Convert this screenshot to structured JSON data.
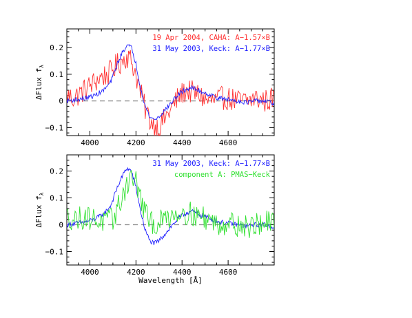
{
  "chart_data": [
    {
      "type": "line",
      "ylabel": "ΔFlux f",
      "ylabel_sub": "λ",
      "xlim": [
        3900,
        4800
      ],
      "ylim": [
        -0.13,
        0.27
      ],
      "x_ticks": [
        4000,
        4200,
        4400,
        4600
      ],
      "y_ticks": [
        -0.1,
        0,
        0.1,
        0.2
      ],
      "y_tick_labels": [
        "−0.1",
        "0",
        "0.1",
        "0.2"
      ],
      "zero_line": true,
      "legend_position": "top-right",
      "series": [
        {
          "name": "19 Apr 2004, CAHA: A−1.57×B",
          "color": "#ff3030",
          "style": "noisy",
          "x": [
            3900,
            3930,
            3960,
            3990,
            4020,
            4050,
            4080,
            4110,
            4140,
            4160,
            4180,
            4200,
            4220,
            4240,
            4260,
            4280,
            4300,
            4330,
            4360,
            4390,
            4420,
            4450,
            4480,
            4510,
            4540,
            4570,
            4600,
            4640,
            4680,
            4720,
            4760,
            4800
          ],
          "y": [
            0.02,
            0.01,
            0.03,
            0.05,
            0.07,
            0.09,
            0.1,
            0.13,
            0.15,
            0.17,
            0.15,
            0.1,
            0.03,
            -0.03,
            -0.07,
            -0.09,
            -0.1,
            -0.06,
            -0.02,
            0.02,
            0.04,
            0.03,
            0.02,
            0.0,
            0.0,
            0.01,
            0.01,
            0.0,
            0.0,
            0.01,
            0.0,
            0.01
          ]
        },
        {
          "name": "31 May 2003, Keck: A−1.77×B",
          "color": "#2020ff",
          "style": "smooth",
          "x": [
            3900,
            3940,
            3980,
            4020,
            4060,
            4090,
            4120,
            4140,
            4160,
            4180,
            4200,
            4220,
            4240,
            4260,
            4280,
            4300,
            4320,
            4350,
            4380,
            4410,
            4440,
            4470,
            4500,
            4530,
            4560,
            4600,
            4640,
            4680,
            4720,
            4760,
            4800
          ],
          "y": [
            0.0,
            0.005,
            0.01,
            0.02,
            0.04,
            0.07,
            0.14,
            0.18,
            0.21,
            0.2,
            0.14,
            0.05,
            -0.02,
            -0.06,
            -0.07,
            -0.06,
            -0.04,
            -0.01,
            0.02,
            0.04,
            0.05,
            0.04,
            0.03,
            0.02,
            0.01,
            0.005,
            0.0,
            -0.005,
            0.0,
            0.0,
            -0.01
          ]
        }
      ]
    },
    {
      "type": "line",
      "ylabel": "ΔFlux f",
      "ylabel_sub": "λ",
      "xlabel": "Wavelength [Å]",
      "xlim": [
        3900,
        4800
      ],
      "ylim": [
        -0.15,
        0.26
      ],
      "x_ticks": [
        4000,
        4200,
        4400,
        4600
      ],
      "y_ticks": [
        -0.1,
        0,
        0.1,
        0.2
      ],
      "y_tick_labels": [
        "−0.1",
        "0",
        "0.1",
        "0.2"
      ],
      "zero_line": true,
      "legend_position": "top-right",
      "series": [
        {
          "name": "31 May 2003, Keck: A−1.77×B",
          "color": "#2020ff",
          "style": "smooth",
          "x": [
            3900,
            3940,
            3980,
            4020,
            4060,
            4090,
            4120,
            4140,
            4160,
            4180,
            4200,
            4220,
            4240,
            4260,
            4280,
            4300,
            4320,
            4350,
            4380,
            4410,
            4440,
            4470,
            4500,
            4530,
            4560,
            4600,
            4640,
            4680,
            4720,
            4760,
            4800
          ],
          "y": [
            0.0,
            0.005,
            0.01,
            0.02,
            0.04,
            0.07,
            0.14,
            0.18,
            0.21,
            0.2,
            0.14,
            0.05,
            -0.02,
            -0.06,
            -0.07,
            -0.06,
            -0.04,
            -0.01,
            0.02,
            0.04,
            0.05,
            0.04,
            0.03,
            0.02,
            0.01,
            0.005,
            0.0,
            -0.005,
            0.0,
            0.0,
            -0.01
          ]
        },
        {
          "name": "component A: PMAS−Keck",
          "color": "#30e030",
          "style": "noisy",
          "x": [
            3900,
            3940,
            3980,
            4020,
            4060,
            4100,
            4130,
            4160,
            4180,
            4200,
            4220,
            4240,
            4260,
            4290,
            4320,
            4360,
            4400,
            4440,
            4480,
            4520,
            4560,
            4600,
            4640,
            4680,
            4720,
            4760,
            4800
          ],
          "y": [
            0.03,
            0.02,
            0.03,
            0.02,
            0.01,
            0.02,
            0.08,
            0.15,
            0.18,
            0.16,
            0.1,
            0.04,
            0.01,
            0.0,
            0.02,
            0.04,
            0.05,
            0.04,
            0.03,
            0.02,
            0.0,
            0.01,
            0.0,
            -0.01,
            0.0,
            0.01,
            0.0
          ]
        }
      ]
    }
  ]
}
